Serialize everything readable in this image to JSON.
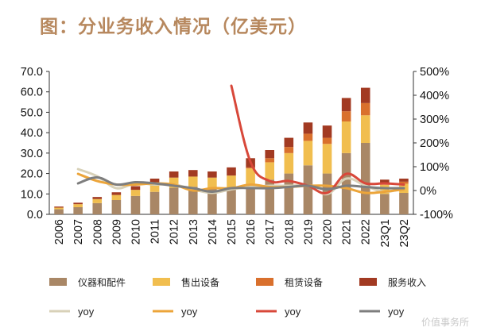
{
  "title": "图：分业务收入情况（亿美元）",
  "watermark": "价值事务所",
  "colors": {
    "instruments": "#a98766",
    "sales": "#f1be4f",
    "rental": "#d9702d",
    "service": "#a23a22",
    "yoy_instruments": "#d8d1b8",
    "yoy_sales": "#eca53a",
    "yoy_rental": "#d8483a",
    "yoy_service": "#7e7e7e"
  },
  "chart_data": {
    "type": "bar",
    "stacked": true,
    "categories": [
      "2006",
      "2007",
      "2008",
      "2009",
      "2010",
      "2011",
      "2012",
      "2013",
      "2014",
      "2015",
      "2016",
      "2017",
      "2018",
      "2019",
      "2020",
      "2021",
      "2022",
      "23Q1",
      "23Q2"
    ],
    "ylim": [
      0,
      70
    ],
    "y_ticks": [
      "0.0",
      "10.0",
      "20.0",
      "30.0",
      "40.0",
      "50.0",
      "60.0",
      "70.0"
    ],
    "y2lim": [
      -100,
      500
    ],
    "y2_ticks": [
      "-100%",
      "0%",
      "100%",
      "200%",
      "300%",
      "400%",
      "500%"
    ],
    "grid": false,
    "legend_position": "bottom",
    "series": [
      {
        "name": "仪器和配件",
        "key": "instruments",
        "values": [
          2.5,
          3.5,
          5.5,
          7.0,
          9.0,
          11.0,
          13.0,
          13.5,
          12.5,
          13.0,
          15.0,
          17.0,
          20.0,
          24.0,
          20.0,
          30.0,
          35.0,
          10.0,
          10.5
        ]
      },
      {
        "name": "售出设备",
        "key": "sales",
        "values": [
          0.8,
          1.5,
          2.0,
          2.5,
          3.0,
          4.0,
          5.0,
          5.0,
          5.5,
          6.0,
          7.5,
          8.5,
          10.0,
          12.0,
          14.5,
          15.5,
          13.5,
          4.5,
          4.5
        ]
      },
      {
        "name": "租赁设备",
        "key": "rental",
        "values": [
          0,
          0,
          0,
          0,
          0,
          0,
          0,
          0,
          0,
          0,
          0.5,
          2.0,
          3.0,
          3.5,
          3.0,
          5.0,
          6.0,
          1.0,
          1.0
        ]
      },
      {
        "name": "服务收入",
        "key": "service",
        "values": [
          0.5,
          0.7,
          1.0,
          1.3,
          1.8,
          2.5,
          3.0,
          3.2,
          3.0,
          4.0,
          4.5,
          4.0,
          4.5,
          5.5,
          6.0,
          6.5,
          7.5,
          1.5,
          1.5
        ]
      }
    ],
    "yoy_series": [
      {
        "name": "yoy",
        "key": "yoy_instruments",
        "values": [
          null,
          90,
          60,
          10,
          30,
          25,
          25,
          5,
          -10,
          5,
          15,
          20,
          20,
          20,
          -15,
          50,
          20,
          -5,
          10
        ]
      },
      {
        "name": "yoy",
        "key": "yoy_sales",
        "values": [
          null,
          70,
          40,
          25,
          25,
          30,
          25,
          0,
          10,
          10,
          25,
          15,
          15,
          20,
          20,
          10,
          -10,
          -5,
          5
        ]
      },
      {
        "name": "yoy",
        "key": "yoy_rental",
        "values": [
          null,
          null,
          null,
          null,
          null,
          null,
          null,
          null,
          null,
          440,
          120,
          40,
          40,
          20,
          -10,
          70,
          30,
          30,
          25
        ]
      },
      {
        "name": "yoy",
        "key": "yoy_service",
        "values": [
          null,
          30,
          55,
          25,
          35,
          30,
          20,
          10,
          -5,
          10,
          10,
          10,
          15,
          20,
          5,
          20,
          15,
          10,
          10
        ]
      }
    ]
  }
}
